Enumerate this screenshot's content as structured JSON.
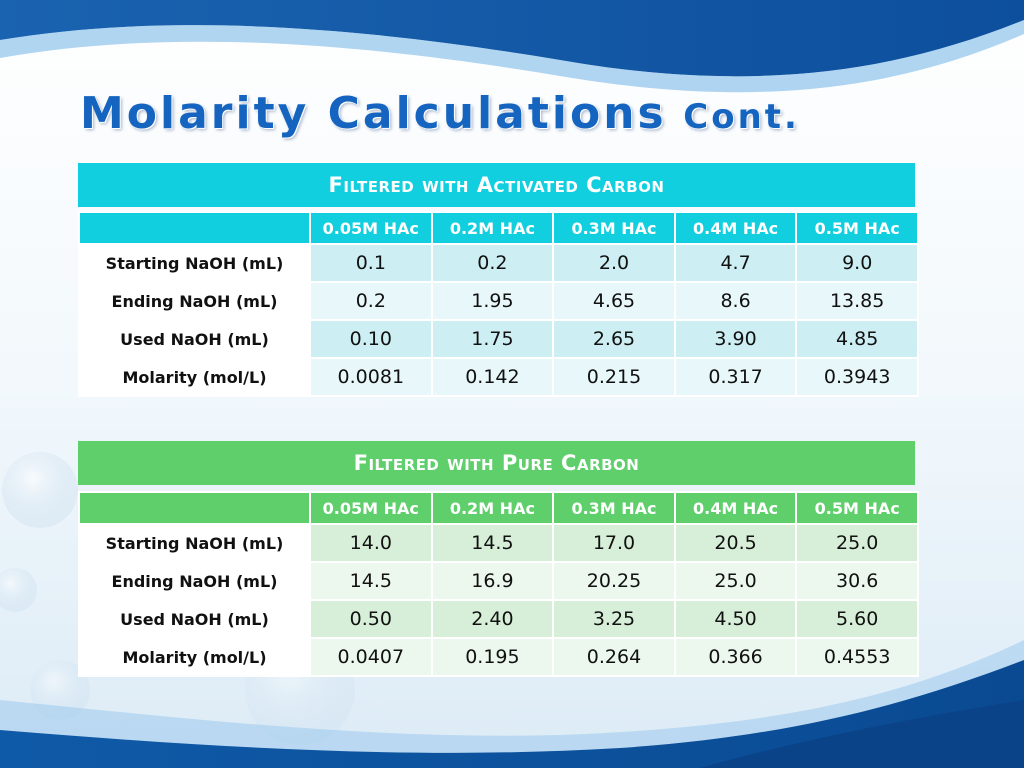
{
  "slide": {
    "title": "Molarity Calculations",
    "title_suffix": "Cont."
  },
  "tables": [
    {
      "caption": "Filtered with Activated Carbon",
      "accent_color": "#12cfe0",
      "columns": [
        "",
        "0.05M HAc",
        "0.2M HAc",
        "0.3M HAc",
        "0.4M HAc",
        "0.5M HAc"
      ],
      "rows": [
        {
          "label": "Starting NaOH (mL)",
          "values": [
            "0.1",
            "0.2",
            "2.0",
            "4.7",
            "9.0"
          ]
        },
        {
          "label": "Ending NaOH (mL)",
          "values": [
            "0.2",
            "1.95",
            "4.65",
            "8.6",
            "13.85"
          ]
        },
        {
          "label": "Used NaOH (mL)",
          "values": [
            "0.10",
            "1.75",
            "2.65",
            "3.90",
            "4.85"
          ]
        },
        {
          "label": "Molarity (mol/L)",
          "values": [
            "0.0081",
            "0.142",
            "0.215",
            "0.317",
            "0.3943"
          ]
        }
      ]
    },
    {
      "caption": "Filtered with Pure Carbon",
      "accent_color": "#5fcf6b",
      "columns": [
        "",
        "0.05M HAc",
        "0.2M HAc",
        "0.3M HAc",
        "0.4M HAc",
        "0.5M HAc"
      ],
      "rows": [
        {
          "label": "Starting NaOH (mL)",
          "values": [
            "14.0",
            "14.5",
            "17.0",
            "20.5",
            "25.0"
          ]
        },
        {
          "label": "Ending NaOH (mL)",
          "values": [
            "14.5",
            "16.9",
            "20.25",
            "25.0",
            "30.6"
          ]
        },
        {
          "label": "Used NaOH (mL)",
          "values": [
            "0.50",
            "2.40",
            "3.25",
            "4.50",
            "5.60"
          ]
        },
        {
          "label": "Molarity (mol/L)",
          "values": [
            "0.0407",
            "0.195",
            "0.264",
            "0.366",
            "0.4553"
          ]
        }
      ]
    }
  ]
}
